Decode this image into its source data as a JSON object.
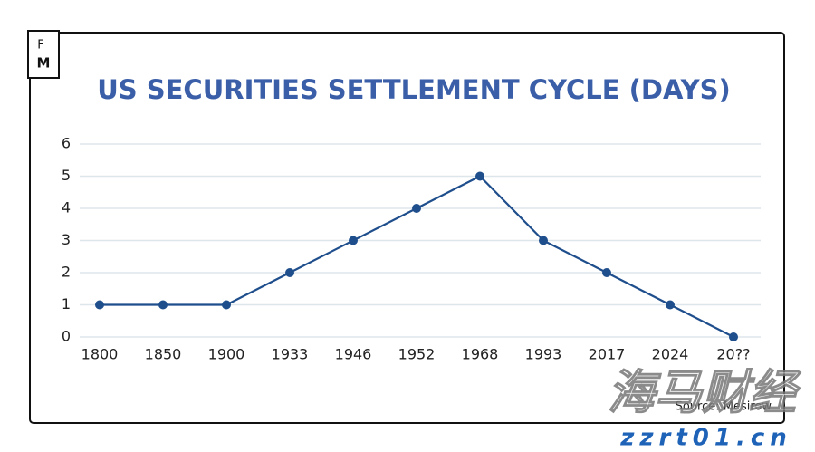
{
  "chart_data": {
    "type": "line",
    "logo": {
      "top": "F",
      "bottom": "M"
    },
    "title": "US SECURITIES SETTLEMENT CYCLE (DAYS)",
    "categories": [
      "1800",
      "1850",
      "1900",
      "1933",
      "1946",
      "1952",
      "1968",
      "1993",
      "2017",
      "2024",
      "20??"
    ],
    "values": [
      1,
      1,
      1,
      2,
      3,
      4,
      5,
      3,
      2,
      1,
      0
    ],
    "color": "#1f4e8c",
    "ylim": [
      0,
      6
    ],
    "yticks": [
      0,
      1,
      2,
      3,
      4,
      5,
      6
    ],
    "grid": true,
    "source": "Source: Mesirow",
    "watermark": {
      "text": "海马财经",
      "url": "zzrt01.cn"
    }
  }
}
